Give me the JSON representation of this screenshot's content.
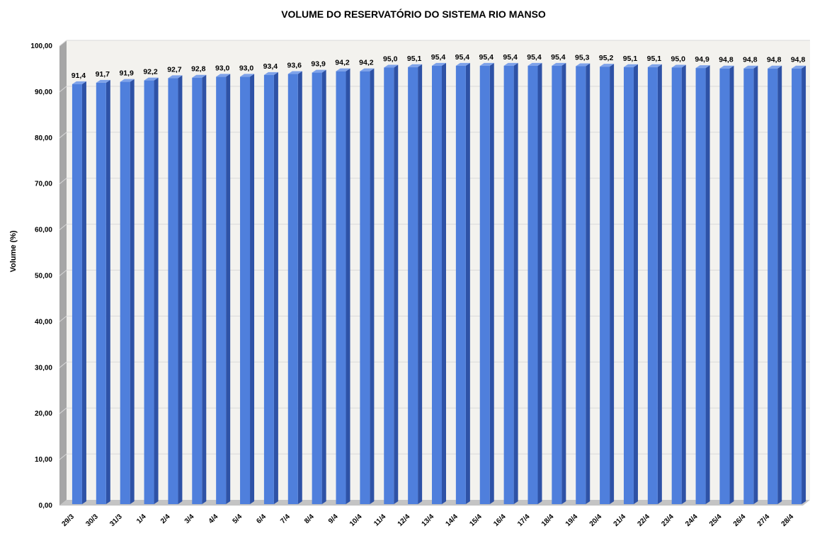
{
  "chart_data": {
    "type": "bar",
    "title": "VOLUME DO RESERVATÓRIO DO SISTEMA RIO MANSO",
    "xlabel": "",
    "ylabel": "Volume (%)",
    "ylim": [
      0,
      100
    ],
    "yticks": [
      "0,00",
      "10,00",
      "20,00",
      "30,00",
      "40,00",
      "50,00",
      "60,00",
      "70,00",
      "80,00",
      "90,00",
      "100,00"
    ],
    "grid": true,
    "bar_style": "3d",
    "categories": [
      "29/3",
      "30/3",
      "31/3",
      "1/4",
      "2/4",
      "3/4",
      "4/4",
      "5/4",
      "6/4",
      "7/4",
      "8/4",
      "9/4",
      "10/4",
      "11/4",
      "12/4",
      "13/4",
      "14/4",
      "15/4",
      "16/4",
      "17/4",
      "18/4",
      "19/4",
      "20/4",
      "21/4",
      "22/4",
      "23/4",
      "24/4",
      "25/4",
      "26/4",
      "27/4",
      "28/4"
    ],
    "values": [
      91.4,
      91.7,
      91.9,
      92.2,
      92.7,
      92.8,
      93.0,
      93.0,
      93.4,
      93.6,
      93.9,
      94.2,
      94.2,
      95.0,
      95.1,
      95.4,
      95.4,
      95.4,
      95.4,
      95.4,
      95.4,
      95.3,
      95.2,
      95.1,
      95.1,
      95.0,
      94.9,
      94.8,
      94.8,
      94.8,
      94.8
    ],
    "data_labels": [
      "91,4",
      "91,7",
      "91,9",
      "92,2",
      "92,7",
      "92,8",
      "93,0",
      "93,0",
      "93,4",
      "93,6",
      "93,9",
      "94,2",
      "94,2",
      "95,0",
      "95,1",
      "95,4",
      "95,4",
      "95,4",
      "95,4",
      "95,4",
      "95,4",
      "95,3",
      "95,2",
      "95,1",
      "95,1",
      "95,0",
      "94,9",
      "94,8",
      "94,8",
      "94,8",
      "94,8"
    ],
    "colors": {
      "bar_front": "#4f7fdc",
      "bar_side": "#2e52a6",
      "bar_top": "#7fa3ea",
      "plot_back": "#f3f2ee",
      "side_wall": "#a6a6a6",
      "floor": "#c4c4c4",
      "gridline": "#d9d9d9"
    }
  }
}
